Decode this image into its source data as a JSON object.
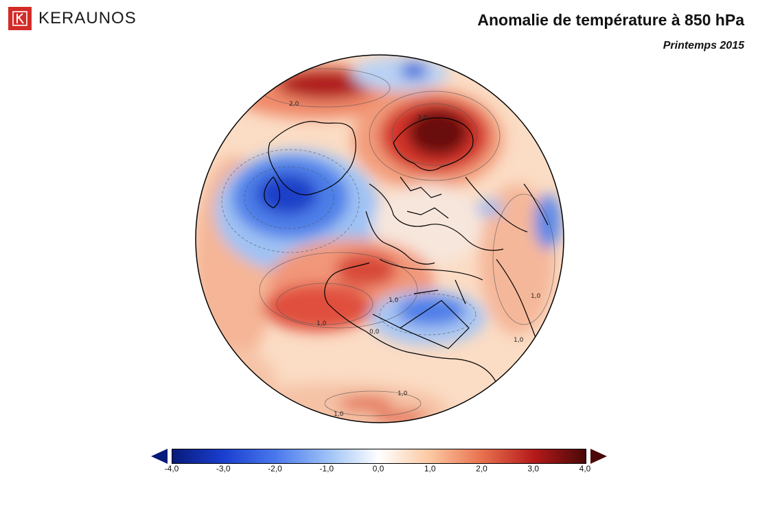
{
  "brand": {
    "logo_text": "KERAUNOS",
    "logo_color": "#d32b27"
  },
  "header": {
    "title": "Anomalie de température à 850 hPa",
    "subtitle": "Printemps 2015"
  },
  "map": {
    "projection": "orthographic",
    "region": "North Atlantic, Europe, Africa",
    "contour_labels": [
      "2,0",
      "3,0",
      "1,0",
      "1,0",
      "0,0",
      "1,0",
      "1,0",
      "1,0",
      "1,0"
    ]
  },
  "colorbar": {
    "min": -4,
    "max": 4,
    "tick_labels": [
      "-4,0",
      "-3,0",
      "-2,0",
      "-1,0",
      "0,0",
      "1,0",
      "2,0",
      "3,0",
      "4,0"
    ],
    "colors": [
      "#081a7a",
      "#1a3fd0",
      "#4a78ec",
      "#9cc0f6",
      "#ffffff",
      "#fbc7a0",
      "#e8704e",
      "#b51a1a",
      "#4a0808"
    ]
  }
}
